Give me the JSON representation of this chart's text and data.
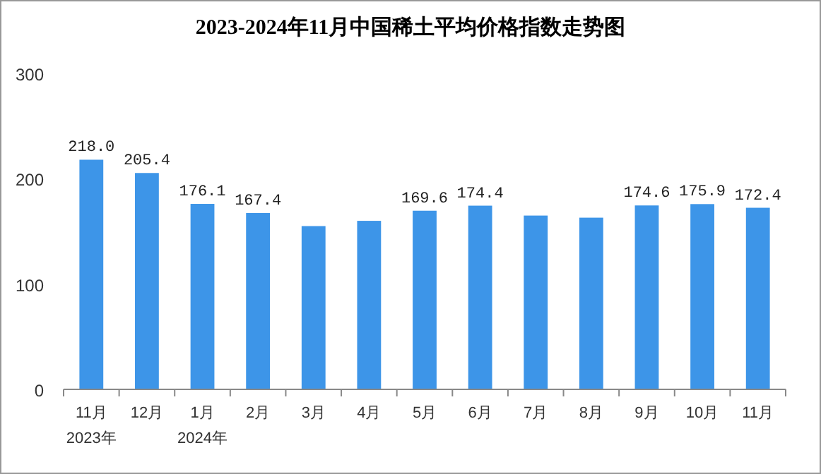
{
  "chart_data": {
    "type": "bar",
    "title": "2023-2024年11月中国稀土平均价格指数走势图",
    "categories": [
      "11月\n2023年",
      "12月",
      "1月\n2024年",
      "2月",
      "3月",
      "4月",
      "5月",
      "6月",
      "7月",
      "8月",
      "9月",
      "10月",
      "11月"
    ],
    "values": [
      218.0,
      205.4,
      176.1,
      167.4,
      155,
      160,
      169.6,
      174.4,
      165,
      163,
      174.6,
      175.9,
      172.4
    ],
    "value_labels": [
      "218.0",
      "205.4",
      "176.1",
      "167.4",
      null,
      null,
      "169.6",
      "174.4",
      null,
      null,
      "174.6",
      "175.9",
      "172.4"
    ],
    "color": "#3d95e8",
    "ylim": [
      0,
      300
    ],
    "yticks": [
      0,
      100,
      200,
      300
    ],
    "grid": false
  }
}
